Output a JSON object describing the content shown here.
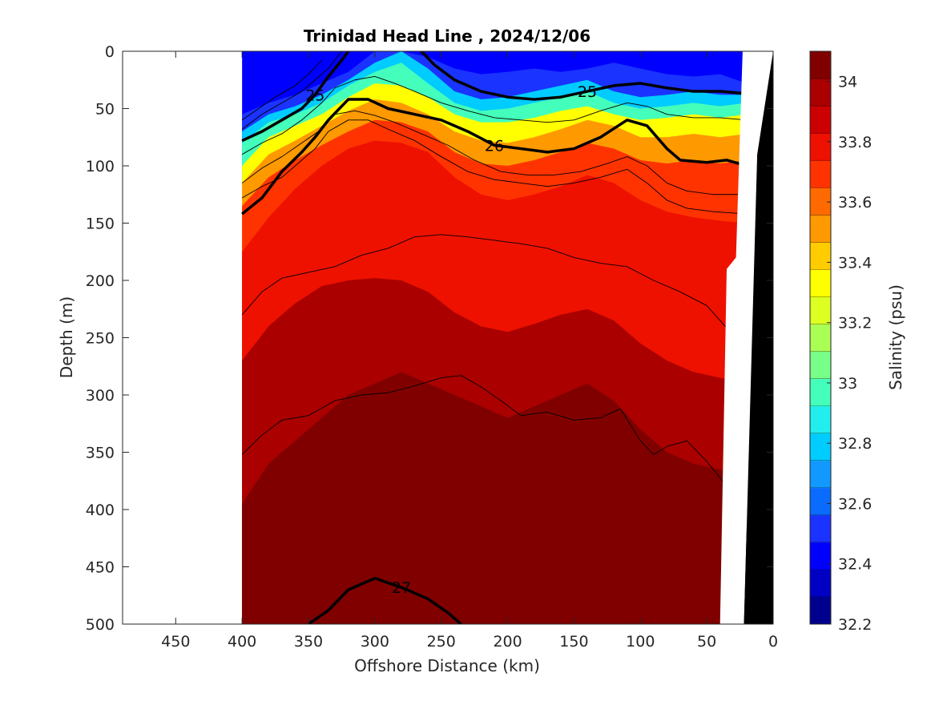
{
  "chart_data": {
    "type": "contour",
    "title": "Trinidad Head Line , 2024/12/06",
    "xlabel": "Offshore Distance (km)",
    "ylabel": "Depth (m)",
    "colorbar_label": "Salinity (psu)",
    "xlim": [
      490,
      0
    ],
    "ylim": [
      500,
      0
    ],
    "x_ticks": [
      450,
      400,
      350,
      300,
      250,
      200,
      150,
      100,
      50,
      0
    ],
    "y_ticks": [
      0,
      50,
      100,
      150,
      200,
      250,
      300,
      350,
      400,
      450,
      500
    ],
    "colorbar_range": [
      32.2,
      34.1
    ],
    "colorbar_ticks": [
      32.2,
      32.4,
      32.6,
      32.8,
      33,
      33.2,
      33.4,
      33.6,
      33.8,
      34
    ],
    "data_extent_km": [
      400,
      20
    ],
    "colormap": [
      "#00008f",
      "#0000c4",
      "#0000ff",
      "#1a33ff",
      "#0a6cff",
      "#1199ff",
      "#00ccff",
      "#22eeee",
      "#44ffbb",
      "#77ff88",
      "#aaff55",
      "#ddff22",
      "#ffff00",
      "#ffcc00",
      "#ff9900",
      "#ff6a00",
      "#ff3300",
      "#ee1100",
      "#cc0000",
      "#aa0000",
      "#800000"
    ],
    "salinity_layers": [
      {
        "salinity": 32.5,
        "depths": [
          55,
          45,
          38,
          28,
          18,
          0,
          0,
          5,
          15,
          20,
          18,
          15,
          18,
          15,
          10,
          15,
          20,
          22,
          20,
          28
        ]
      },
      {
        "salinity": 32.8,
        "depths": [
          70,
          55,
          48,
          38,
          25,
          10,
          0,
          15,
          35,
          42,
          40,
          35,
          30,
          25,
          35,
          40,
          38,
          35,
          38,
          38
        ]
      },
      {
        "salinity": 33.0,
        "depths": [
          80,
          62,
          55,
          45,
          30,
          18,
          10,
          28,
          45,
          52,
          50,
          45,
          40,
          35,
          45,
          50,
          48,
          45,
          48,
          45
        ]
      },
      {
        "salinity": 33.3,
        "depths": [
          100,
          75,
          65,
          55,
          40,
          28,
          30,
          40,
          55,
          62,
          62,
          58,
          52,
          48,
          55,
          60,
          58,
          55,
          58,
          55
        ]
      },
      {
        "salinity": 33.5,
        "depths": [
          115,
          90,
          78,
          65,
          52,
          42,
          45,
          55,
          70,
          78,
          80,
          75,
          68,
          60,
          65,
          75,
          75,
          72,
          75,
          72
        ]
      },
      {
        "salinity": 33.7,
        "depths": [
          135,
          110,
          95,
          82,
          70,
          60,
          62,
          70,
          88,
          98,
          100,
          95,
          88,
          80,
          85,
          95,
          98,
          95,
          98,
          95
        ]
      },
      {
        "salinity": 33.8,
        "depths": [
          175,
          145,
          120,
          100,
          85,
          78,
          80,
          88,
          110,
          125,
          130,
          125,
          118,
          108,
          115,
          130,
          140,
          145,
          148,
          150
        ]
      },
      {
        "salinity": 33.95,
        "depths": [
          270,
          240,
          220,
          205,
          200,
          198,
          200,
          210,
          228,
          240,
          245,
          238,
          230,
          225,
          235,
          255,
          270,
          280,
          285,
          290
        ]
      },
      {
        "salinity": 34.05,
        "depths": [
          395,
          360,
          340,
          320,
          300,
          290,
          280,
          290,
          300,
          310,
          320,
          310,
          300,
          290,
          305,
          330,
          350,
          360,
          365,
          370
        ]
      },
      {
        "salinity": 34.1,
        "depths": [
          495,
          490,
          480,
          470,
          465,
          465,
          470,
          475,
          480,
          490,
          495,
          490,
          480,
          475,
          470,
          475,
          480,
          485,
          490,
          495
        ]
      }
    ],
    "layer_x_km": [
      400,
      380,
      360,
      340,
      320,
      300,
      280,
      260,
      240,
      220,
      200,
      180,
      160,
      140,
      120,
      100,
      80,
      60,
      40,
      20
    ],
    "density_contours": [
      {
        "label": "25",
        "bold": true,
        "points": [
          [
            400,
            78
          ],
          [
            385,
            70
          ],
          [
            370,
            60
          ],
          [
            355,
            50
          ],
          [
            345,
            38
          ],
          [
            335,
            22
          ],
          [
            325,
            8
          ],
          [
            320,
            0
          ]
        ]
      },
      {
        "label": "25",
        "bold": true,
        "points": [
          [
            265,
            0
          ],
          [
            255,
            12
          ],
          [
            240,
            25
          ],
          [
            220,
            35
          ],
          [
            200,
            40
          ],
          [
            180,
            42
          ],
          [
            160,
            40
          ],
          [
            140,
            35
          ],
          [
            120,
            30
          ],
          [
            100,
            28
          ],
          [
            80,
            32
          ],
          [
            60,
            35
          ],
          [
            40,
            35
          ],
          [
            20,
            37
          ]
        ]
      },
      {
        "label": "26",
        "bold": true,
        "points": [
          [
            400,
            142
          ],
          [
            385,
            128
          ],
          [
            370,
            105
          ],
          [
            355,
            88
          ],
          [
            345,
            75
          ],
          [
            335,
            60
          ],
          [
            320,
            42
          ],
          [
            305,
            42
          ],
          [
            290,
            50
          ],
          [
            270,
            55
          ],
          [
            250,
            60
          ],
          [
            230,
            70
          ],
          [
            210,
            82
          ],
          [
            190,
            85
          ],
          [
            170,
            88
          ],
          [
            150,
            85
          ],
          [
            130,
            75
          ],
          [
            110,
            60
          ],
          [
            95,
            65
          ],
          [
            80,
            85
          ],
          [
            70,
            95
          ],
          [
            50,
            97
          ],
          [
            35,
            95
          ],
          [
            20,
            100
          ]
        ]
      },
      {
        "label": "27",
        "bold": true,
        "points": [
          [
            350,
            500
          ],
          [
            335,
            488
          ],
          [
            320,
            470
          ],
          [
            300,
            460
          ],
          [
            280,
            468
          ],
          [
            260,
            478
          ],
          [
            245,
            490
          ],
          [
            235,
            500
          ]
        ]
      },
      {
        "label": "",
        "bold": false,
        "points": [
          [
            400,
            230
          ],
          [
            385,
            210
          ],
          [
            370,
            198
          ],
          [
            350,
            193
          ],
          [
            330,
            188
          ],
          [
            310,
            178
          ],
          [
            290,
            172
          ],
          [
            270,
            162
          ],
          [
            250,
            160
          ],
          [
            230,
            162
          ],
          [
            210,
            165
          ],
          [
            190,
            168
          ],
          [
            170,
            172
          ],
          [
            150,
            180
          ],
          [
            130,
            185
          ],
          [
            110,
            188
          ],
          [
            90,
            200
          ],
          [
            70,
            210
          ],
          [
            50,
            222
          ],
          [
            30,
            248
          ]
        ]
      },
      {
        "label": "",
        "bold": false,
        "points": [
          [
            400,
            352
          ],
          [
            385,
            335
          ],
          [
            370,
            322
          ],
          [
            350,
            318
          ],
          [
            330,
            305
          ],
          [
            310,
            300
          ],
          [
            290,
            298
          ],
          [
            270,
            292
          ],
          [
            250,
            285
          ],
          [
            235,
            283
          ],
          [
            220,
            293
          ],
          [
            205,
            305
          ],
          [
            190,
            318
          ],
          [
            170,
            315
          ],
          [
            150,
            322
          ],
          [
            130,
            320
          ],
          [
            115,
            312
          ],
          [
            100,
            340
          ],
          [
            90,
            352
          ],
          [
            80,
            345
          ],
          [
            65,
            340
          ],
          [
            50,
            358
          ],
          [
            38,
            375
          ],
          [
            30,
            390
          ]
        ]
      },
      {
        "label": "",
        "bold": false,
        "points": [
          [
            400,
            68
          ],
          [
            385,
            55
          ],
          [
            370,
            45
          ],
          [
            355,
            35
          ],
          [
            345,
            25
          ],
          [
            335,
            15
          ],
          [
            325,
            0
          ]
        ]
      },
      {
        "label": "",
        "bold": false,
        "points": [
          [
            400,
            60
          ],
          [
            385,
            48
          ],
          [
            375,
            40
          ],
          [
            360,
            30
          ],
          [
            350,
            20
          ],
          [
            340,
            8
          ]
        ]
      },
      {
        "label": "",
        "bold": false,
        "points": [
          [
            400,
            90
          ],
          [
            385,
            80
          ],
          [
            370,
            72
          ],
          [
            355,
            60
          ],
          [
            340,
            45
          ],
          [
            330,
            32
          ],
          [
            315,
            25
          ],
          [
            300,
            22
          ],
          [
            285,
            28
          ],
          [
            270,
            35
          ],
          [
            250,
            45
          ],
          [
            230,
            52
          ],
          [
            210,
            58
          ],
          [
            190,
            60
          ],
          [
            170,
            62
          ],
          [
            150,
            60
          ],
          [
            130,
            52
          ],
          [
            110,
            45
          ],
          [
            95,
            48
          ],
          [
            80,
            55
          ],
          [
            60,
            58
          ],
          [
            40,
            58
          ],
          [
            20,
            60
          ]
        ]
      },
      {
        "label": "",
        "bold": false,
        "points": [
          [
            400,
            115
          ],
          [
            385,
            102
          ],
          [
            370,
            92
          ],
          [
            355,
            80
          ],
          [
            340,
            68
          ],
          [
            330,
            55
          ],
          [
            315,
            52
          ],
          [
            300,
            56
          ],
          [
            285,
            62
          ],
          [
            265,
            72
          ],
          [
            245,
            82
          ],
          [
            225,
            95
          ],
          [
            205,
            105
          ],
          [
            185,
            108
          ],
          [
            165,
            108
          ],
          [
            145,
            105
          ],
          [
            125,
            98
          ],
          [
            110,
            92
          ],
          [
            95,
            100
          ],
          [
            80,
            115
          ],
          [
            65,
            122
          ],
          [
            45,
            125
          ],
          [
            20,
            125
          ]
        ]
      },
      {
        "label": "",
        "bold": false,
        "points": [
          [
            400,
            128
          ],
          [
            385,
            118
          ],
          [
            370,
            110
          ],
          [
            355,
            95
          ],
          [
            345,
            85
          ],
          [
            335,
            70
          ],
          [
            320,
            60
          ],
          [
            305,
            60
          ],
          [
            290,
            68
          ],
          [
            270,
            78
          ],
          [
            250,
            92
          ],
          [
            230,
            105
          ],
          [
            210,
            112
          ],
          [
            190,
            115
          ],
          [
            170,
            118
          ],
          [
            150,
            115
          ],
          [
            130,
            110
          ],
          [
            110,
            103
          ],
          [
            95,
            115
          ],
          [
            80,
            130
          ],
          [
            65,
            137
          ],
          [
            45,
            140
          ],
          [
            20,
            142
          ]
        ]
      }
    ],
    "seafloor_km_by_depth": [
      [
        0,
        0
      ],
      [
        90,
        12
      ],
      [
        500,
        22
      ]
    ],
    "white_gap_km_by_depth": [
      [
        0,
        23
      ],
      [
        180,
        28
      ],
      [
        190,
        35
      ],
      [
        500,
        40
      ]
    ]
  }
}
